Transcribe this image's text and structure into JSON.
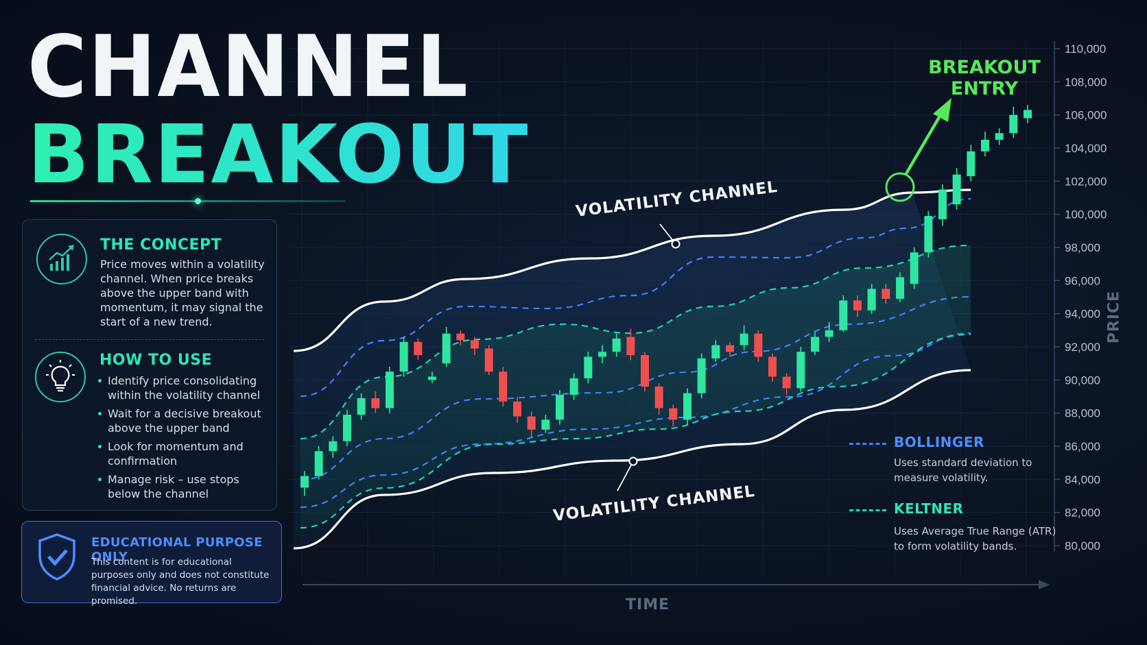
{
  "title": {
    "line1": "CHANNEL",
    "line2": "BREAKOUT"
  },
  "concept": {
    "title": "THE CONCEPT",
    "body": "Price moves within a volatility channel. When price breaks above the upper band with momentum, it may signal the start of a new trend.",
    "icon": "chart-growth-icon"
  },
  "how_to_use": {
    "title": "HOW TO USE",
    "icon": "lightbulb-icon",
    "items": [
      "Identify price consolidating within the volatility channel",
      "Wait for a decisive breakout above the upper band",
      "Look for momentum and confirmation",
      "Manage risk – use stops below the channel"
    ]
  },
  "educational": {
    "title": "EDUCATIONAL PURPOSE ONLY",
    "body": "This content is for educational purposes only and does not constitute financial advice. No returns are promised.",
    "icon": "shield-check-icon"
  },
  "legend": {
    "bollinger": {
      "title": "BOLLINGER",
      "body": "Uses standard deviation to measure volatility.",
      "color": "#3d82ff"
    },
    "keltner": {
      "title": "KELTNER",
      "body": "Uses Average True Range (ATR) to form volatility bands.",
      "color": "#22d3b5"
    }
  },
  "chart_data": {
    "type": "candlestick",
    "xlabel": "TIME",
    "ylabel": "PRICE",
    "ylim": [
      80000,
      110000
    ],
    "yticks": [
      "110,000",
      "108,000",
      "106,000",
      "104,000",
      "102,000",
      "100,000",
      "98,000",
      "96,000",
      "94,000",
      "92,000",
      "90,000",
      "88,000",
      "86,000",
      "84,000",
      "82,000",
      "80,000"
    ],
    "annotations": {
      "upper_channel": "VOLATILITY CHANNEL",
      "lower_channel": "VOLATILITY CHANNEL",
      "breakout": "BREAKOUT ENTRY"
    },
    "colors": {
      "up": "#2ee6a0",
      "down": "#f04f4f",
      "channel": "#ffffff",
      "breakout": "#57e85a"
    },
    "candles": [
      [
        83500,
        84200,
        83000,
        84500
      ],
      [
        84200,
        85700,
        84000,
        86000
      ],
      [
        85700,
        86300,
        85300,
        86600
      ],
      [
        86300,
        87900,
        86000,
        88200
      ],
      [
        87900,
        88900,
        87600,
        89200
      ],
      [
        88900,
        88300,
        88000,
        89300
      ],
      [
        88300,
        90500,
        88000,
        90800
      ],
      [
        90500,
        92300,
        90200,
        92600
      ],
      [
        92300,
        91500,
        91200,
        92500
      ],
      [
        90000,
        90200,
        89800,
        90500
      ],
      [
        91000,
        92800,
        90800,
        93200
      ],
      [
        92800,
        92400,
        92100,
        93000
      ],
      [
        92400,
        91900,
        91500,
        92600
      ],
      [
        91900,
        90500,
        90300,
        92100
      ],
      [
        90500,
        88700,
        88400,
        90800
      ],
      [
        88700,
        87800,
        87400,
        89000
      ],
      [
        87800,
        87000,
        86500,
        88100
      ],
      [
        87000,
        87600,
        86800,
        87900
      ],
      [
        87600,
        89100,
        87300,
        89400
      ],
      [
        89100,
        90100,
        88800,
        90400
      ],
      [
        90100,
        91400,
        89800,
        91700
      ],
      [
        91400,
        91700,
        91000,
        92100
      ],
      [
        91700,
        92500,
        91400,
        92800
      ],
      [
        92600,
        91500,
        91200,
        93100
      ],
      [
        91500,
        89600,
        89300,
        91700
      ],
      [
        89600,
        88300,
        87900,
        89800
      ],
      [
        88300,
        87600,
        87200,
        88500
      ],
      [
        87600,
        89200,
        87300,
        89500
      ],
      [
        89200,
        91300,
        88900,
        91600
      ],
      [
        91300,
        92100,
        91100,
        92400
      ],
      [
        92100,
        91700,
        91400,
        92300
      ],
      [
        92100,
        92800,
        91800,
        93300
      ],
      [
        92800,
        91400,
        91100,
        93000
      ],
      [
        91400,
        90200,
        89900,
        91600
      ],
      [
        90200,
        89500,
        89100,
        90400
      ],
      [
        89500,
        91700,
        89300,
        92000
      ],
      [
        91700,
        92600,
        91500,
        92900
      ],
      [
        92600,
        93000,
        92300,
        93500
      ],
      [
        93000,
        94800,
        92900,
        95100
      ],
      [
        94800,
        94200,
        93800,
        95100
      ],
      [
        94200,
        95500,
        94000,
        95800
      ],
      [
        95500,
        94900,
        94600,
        95800
      ],
      [
        94900,
        96200,
        94700,
        96500
      ],
      [
        95800,
        97700,
        95500,
        98000
      ],
      [
        97700,
        99900,
        97400,
        100200
      ],
      [
        99700,
        101500,
        99300,
        101800
      ],
      [
        100600,
        102400,
        100300,
        102800
      ],
      [
        102300,
        103800,
        102000,
        104200
      ],
      [
        103800,
        104500,
        103500,
        105000
      ],
      [
        104500,
        104900,
        104200,
        105200
      ],
      [
        104900,
        106000,
        104600,
        106500
      ],
      [
        105800,
        106300,
        105500,
        106600
      ]
    ]
  }
}
